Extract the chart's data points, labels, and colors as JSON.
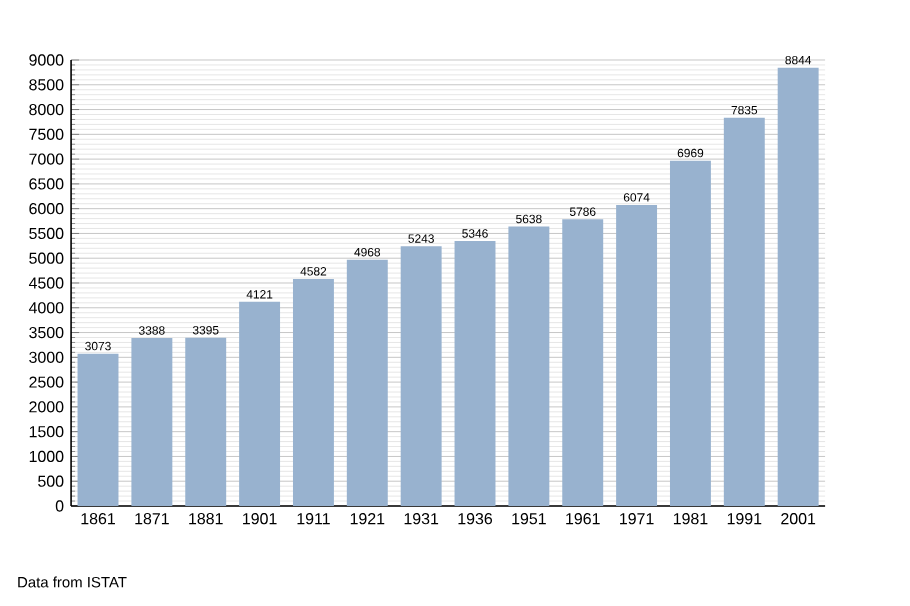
{
  "chart_data": {
    "type": "bar",
    "categories": [
      "1861",
      "1871",
      "1881",
      "1901",
      "1911",
      "1921",
      "1931",
      "1936",
      "1951",
      "1961",
      "1971",
      "1981",
      "1991",
      "2001"
    ],
    "values": [
      3073,
      3388,
      3395,
      4121,
      4582,
      4968,
      5243,
      5346,
      5638,
      5786,
      6074,
      6969,
      7835,
      8844
    ],
    "color": "#98b2cf",
    "ylim": [
      0,
      9000
    ],
    "yticks": [
      0,
      500,
      1000,
      1500,
      2000,
      2500,
      3000,
      3500,
      4000,
      4500,
      5000,
      5500,
      6000,
      6500,
      7000,
      7500,
      8000,
      8500,
      9000
    ],
    "grid": true,
    "data_labels": true,
    "annotations": [
      "Data from ISTAT"
    ]
  }
}
